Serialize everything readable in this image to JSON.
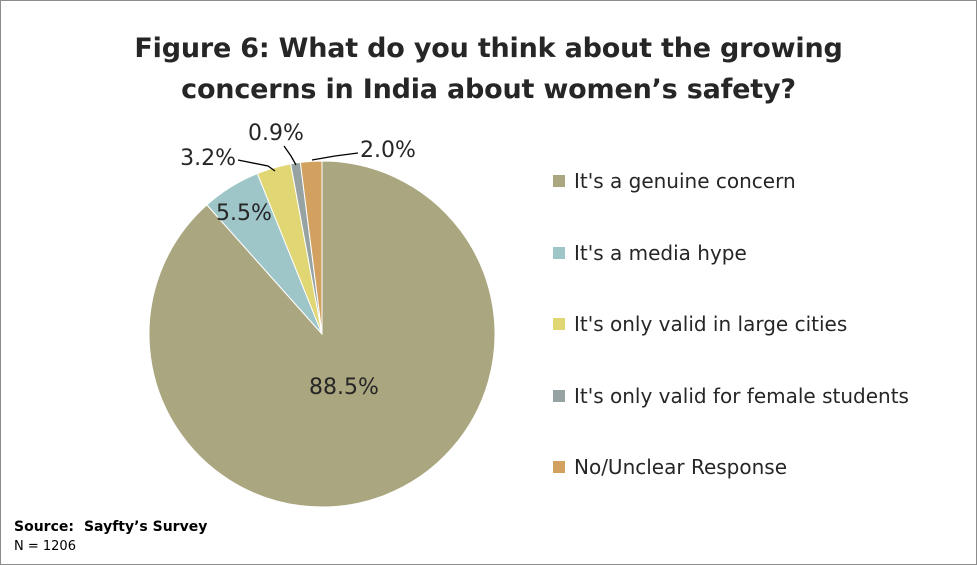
{
  "chart_data": {
    "type": "pie",
    "title_lines": [
      "Figure 6: What do you think about the growing",
      "concerns in India about women’s safety?"
    ],
    "slices": [
      {
        "name": "It's a genuine concern",
        "value": 88.5,
        "label": "88.5%",
        "color": "#aaa67f"
      },
      {
        "name": "It's a media hype",
        "value": 5.5,
        "label": "5.5%",
        "color": "#9ec5c8"
      },
      {
        "name": "It's only valid in large cities",
        "value": 3.2,
        "label": "3.2%",
        "color": "#e0d673"
      },
      {
        "name": "It's only valid for female students",
        "value": 0.9,
        "label": "0.9%",
        "color": "#97a3a3"
      },
      {
        "name": "No/Unclear Response",
        "value": 2.0,
        "label": "2.0%",
        "color": "#d2a05f"
      }
    ],
    "legend_position": "right",
    "start_angle_deg": 0,
    "direction": "clockwise"
  },
  "source": {
    "label": "Source:",
    "value": "Sayfty’s Survey",
    "n_line": "N = 1206"
  }
}
